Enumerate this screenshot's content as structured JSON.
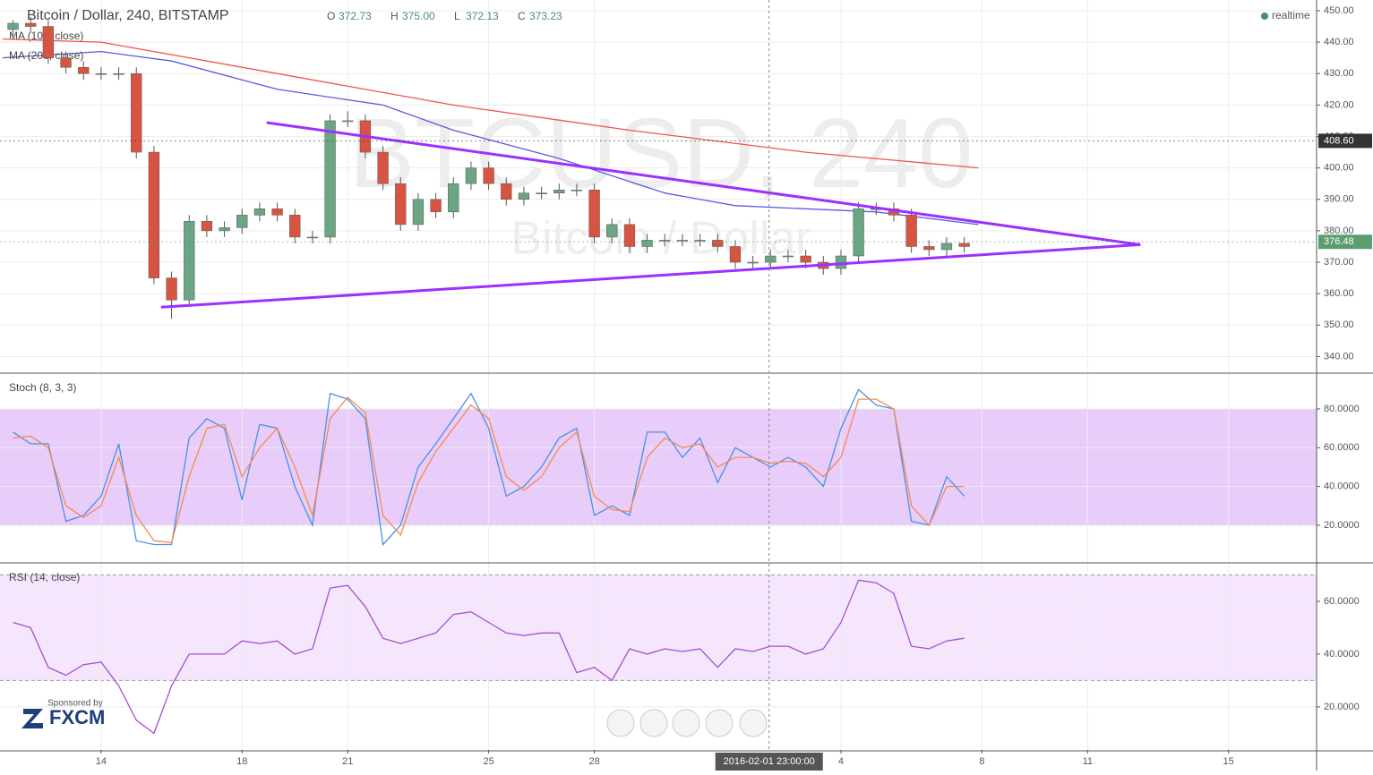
{
  "header": {
    "title": "Bitcoin / Dollar, 240, BITSTAMP",
    "ohlc": [
      {
        "key": "O",
        "value": "372.73"
      },
      {
        "key": "H",
        "value": "375.00"
      },
      {
        "key": "L",
        "value": "372.13"
      },
      {
        "key": "C",
        "value": "373.23"
      }
    ],
    "status": "realtime"
  },
  "watermark": {
    "symbol": "BTCUSD, 240",
    "name": "Bitcoin / Dollar"
  },
  "sponsor": {
    "caption": "Sponsored by",
    "brand": "FXCM"
  },
  "crosshair": {
    "x": 18.96,
    "label": "2016-02-01 23:00:00"
  },
  "chart_data": [
    {
      "type": "candlestick",
      "xlim": [
        -2.87,
        34.5
      ],
      "ylim": [
        335,
        453.4
      ],
      "xticks": [
        {
          "value": 0,
          "label": "14"
        },
        {
          "value": 4,
          "label": "18"
        },
        {
          "value": 7,
          "label": "21"
        },
        {
          "value": 11,
          "label": "25"
        },
        {
          "value": 14,
          "label": "28"
        },
        {
          "value": 21,
          "label": "4"
        },
        {
          "value": 25,
          "label": "8"
        },
        {
          "value": 28,
          "label": "11"
        },
        {
          "value": 32,
          "label": "15"
        }
      ],
      "yticks": [
        {
          "value": 340,
          "label": "340.00"
        },
        {
          "value": 350,
          "label": "350.00"
        },
        {
          "value": 360,
          "label": "360.00"
        },
        {
          "value": 370,
          "label": "370.00"
        },
        {
          "value": 380,
          "label": "380.00"
        },
        {
          "value": 390,
          "label": "390.00"
        },
        {
          "value": 400,
          "label": "400.00"
        },
        {
          "value": 410,
          "label": "410.00"
        },
        {
          "value": 420,
          "label": "420.00"
        },
        {
          "value": 430,
          "label": "430.00"
        },
        {
          "value": 440,
          "label": "440.00"
        },
        {
          "value": 450,
          "label": "450.00"
        }
      ],
      "up_color": "#6ba583",
      "down_color": "#d75442",
      "x": [
        -2.5,
        -2,
        -1.5,
        -1,
        -0.5,
        0,
        0.5,
        1,
        1.5,
        2,
        2.5,
        3,
        3.5,
        4,
        4.5,
        5,
        5.5,
        6,
        6.5,
        7,
        7.5,
        8,
        8.5,
        9,
        9.5,
        10,
        10.5,
        11,
        11.5,
        12,
        12.5,
        13,
        13.5,
        14,
        14.5,
        15,
        15.5,
        16,
        16.5,
        17,
        17.5,
        18,
        18.5,
        19,
        19.5,
        20,
        20.5,
        21,
        21.5,
        22,
        22.5,
        23,
        23.5,
        24,
        24.5
      ],
      "open": [
        444,
        446,
        445,
        435,
        432,
        430,
        430,
        430,
        405,
        365,
        358,
        383,
        380,
        381,
        385,
        387,
        385,
        378,
        378,
        415,
        415,
        405,
        395,
        382,
        390,
        386,
        395,
        400,
        395,
        390,
        392,
        392,
        393,
        393,
        378,
        382,
        375,
        377,
        377,
        377,
        377,
        375,
        370,
        370,
        372,
        372,
        370,
        368,
        372,
        387,
        387,
        385,
        375,
        374,
        376
      ],
      "high": [
        447,
        448,
        447,
        437,
        434,
        432,
        432,
        432,
        407,
        367,
        385,
        385,
        383,
        387,
        389,
        389,
        387,
        380,
        417,
        418,
        417,
        407,
        397,
        392,
        392,
        397,
        402,
        402,
        397,
        394,
        394,
        395,
        395,
        395,
        384,
        384,
        379,
        379,
        379,
        379,
        379,
        377,
        372,
        374,
        374,
        374,
        372,
        374,
        389,
        389,
        389,
        387,
        377,
        378,
        378
      ],
      "low": [
        442,
        443,
        433,
        430,
        428,
        428,
        428,
        403,
        363,
        352,
        356,
        378,
        378,
        379,
        383,
        383,
        376,
        376,
        376,
        413,
        403,
        393,
        380,
        380,
        384,
        384,
        393,
        393,
        388,
        388,
        390,
        390,
        391,
        376,
        376,
        373,
        373,
        375,
        375,
        375,
        373,
        368,
        368,
        368,
        370,
        368,
        366,
        366,
        370,
        385,
        383,
        373,
        372,
        372,
        373
      ],
      "close": [
        446,
        445,
        435,
        432,
        430,
        430,
        430,
        405,
        365,
        358,
        383,
        380,
        381,
        385,
        387,
        385,
        378,
        378,
        415,
        415,
        405,
        395,
        382,
        390,
        386,
        395,
        400,
        395,
        390,
        392,
        392,
        393,
        393,
        378,
        382,
        375,
        377,
        377,
        377,
        377,
        375,
        370,
        370,
        372,
        372,
        370,
        368,
        372,
        387,
        387,
        385,
        375,
        374,
        376,
        375
      ],
      "lines": [
        {
          "name": "MA (100, close)",
          "color": "#5b5bdf",
          "x": [
            -2.8,
            0,
            2,
            5,
            8,
            10,
            13,
            16,
            18,
            20,
            22,
            24.9
          ],
          "values": [
            435,
            437,
            434,
            425,
            420,
            412,
            403,
            392,
            388,
            387,
            386,
            382
          ]
        },
        {
          "name": "MA (200, close)",
          "color": "#ef5350",
          "x": [
            -2.8,
            0,
            5,
            10,
            15,
            20,
            24.9
          ],
          "values": [
            441,
            440,
            430,
            420,
            412,
            405,
            400
          ]
        }
      ],
      "trendlines": [
        {
          "color": "#9b30ff",
          "x": [
            4.7,
            29.5
          ],
          "values": [
            414.4,
            375.6
          ]
        },
        {
          "color": "#9b30ff",
          "x": [
            1.7,
            29.5
          ],
          "values": [
            355.7,
            375.6
          ]
        }
      ],
      "price_labels": [
        {
          "value": 408.6,
          "label": "408.60",
          "color": "#333333"
        },
        {
          "value": 376.48,
          "label": "376.48",
          "color": "#5a9e70"
        }
      ]
    },
    {
      "type": "line",
      "name": "Stoch (8, 3, 3)",
      "xlim": [
        -2.87,
        34.5
      ],
      "ylim": [
        1,
        98
      ],
      "band": [
        20,
        80
      ],
      "band_color": "#e8cdfb",
      "yticks": [
        {
          "value": 20,
          "label": "20.0000"
        },
        {
          "value": 40,
          "label": "40.0000"
        },
        {
          "value": 60,
          "label": "60.0000"
        },
        {
          "value": 80,
          "label": "80.0000"
        }
      ],
      "x": [
        -2.5,
        -2,
        -1.5,
        -1,
        -0.5,
        0,
        0.5,
        1,
        1.5,
        2,
        2.5,
        3,
        3.5,
        4,
        4.5,
        5,
        5.5,
        6,
        6.5,
        7,
        7.5,
        8,
        8.5,
        9,
        9.5,
        10,
        10.5,
        11,
        11.5,
        12,
        12.5,
        13,
        13.5,
        14,
        14.5,
        15,
        15.5,
        16,
        16.5,
        17,
        17.5,
        18,
        18.5,
        19,
        19.5,
        20,
        20.5,
        21,
        21.5,
        22,
        22.5,
        23,
        23.5,
        24,
        24.5
      ],
      "series": [
        {
          "color": "#4a90e2",
          "values": [
            68,
            62,
            62,
            22,
            25,
            35,
            62,
            12,
            10,
            10,
            65,
            75,
            70,
            33,
            72,
            70,
            40,
            20,
            88,
            85,
            75,
            10,
            20,
            50,
            62,
            75,
            88,
            70,
            35,
            40,
            50,
            65,
            70,
            25,
            30,
            25,
            68,
            68,
            55,
            65,
            42,
            60,
            55,
            50,
            55,
            50,
            40,
            70,
            90,
            82,
            80,
            22,
            20,
            45,
            35
          ]
        },
        {
          "color": "#f58a4f",
          "values": [
            65,
            66,
            60,
            30,
            24,
            30,
            55,
            25,
            12,
            11,
            45,
            70,
            72,
            45,
            60,
            70,
            50,
            25,
            75,
            86,
            78,
            25,
            15,
            42,
            58,
            70,
            82,
            75,
            45,
            38,
            45,
            60,
            68,
            35,
            28,
            27,
            55,
            65,
            60,
            62,
            50,
            55,
            55,
            52,
            53,
            52,
            45,
            55,
            85,
            85,
            80,
            30,
            20,
            40,
            40
          ]
        }
      ]
    },
    {
      "type": "line",
      "name": "RSI (14, close)",
      "xlim": [
        -2.87,
        34.5
      ],
      "ylim": [
        3.7,
        74.2
      ],
      "band": [
        30,
        70
      ],
      "band_color": "#f5e6fd",
      "yticks": [
        {
          "value": 20,
          "label": "20.0000"
        },
        {
          "value": 40,
          "label": "40.0000"
        },
        {
          "value": 60,
          "label": "60.0000"
        }
      ],
      "x": [
        -2.5,
        -2,
        -1.5,
        -1,
        -0.5,
        0,
        0.5,
        1,
        1.5,
        2,
        2.5,
        3,
        3.5,
        4,
        4.5,
        5,
        5.5,
        6,
        6.5,
        7,
        7.5,
        8,
        8.5,
        9,
        9.5,
        10,
        10.5,
        11,
        11.5,
        12,
        12.5,
        13,
        13.5,
        14,
        14.5,
        15,
        15.5,
        16,
        16.5,
        17,
        17.5,
        18,
        18.5,
        19,
        19.5,
        20,
        20.5,
        21,
        21.5,
        22,
        22.5,
        23,
        23.5,
        24,
        24.5
      ],
      "series": [
        {
          "color": "#a64fd0",
          "values": [
            52,
            50,
            35,
            32,
            36,
            37,
            28,
            15,
            10,
            28,
            40,
            40,
            40,
            45,
            44,
            45,
            40,
            42,
            65,
            66,
            58,
            46,
            44,
            46,
            48,
            55,
            56,
            52,
            48,
            47,
            48,
            48,
            33,
            35,
            30,
            42,
            40,
            42,
            41,
            42,
            35,
            42,
            41,
            43,
            43,
            40,
            42,
            52,
            68,
            67,
            63,
            43,
            42,
            45,
            46
          ]
        }
      ]
    }
  ]
}
